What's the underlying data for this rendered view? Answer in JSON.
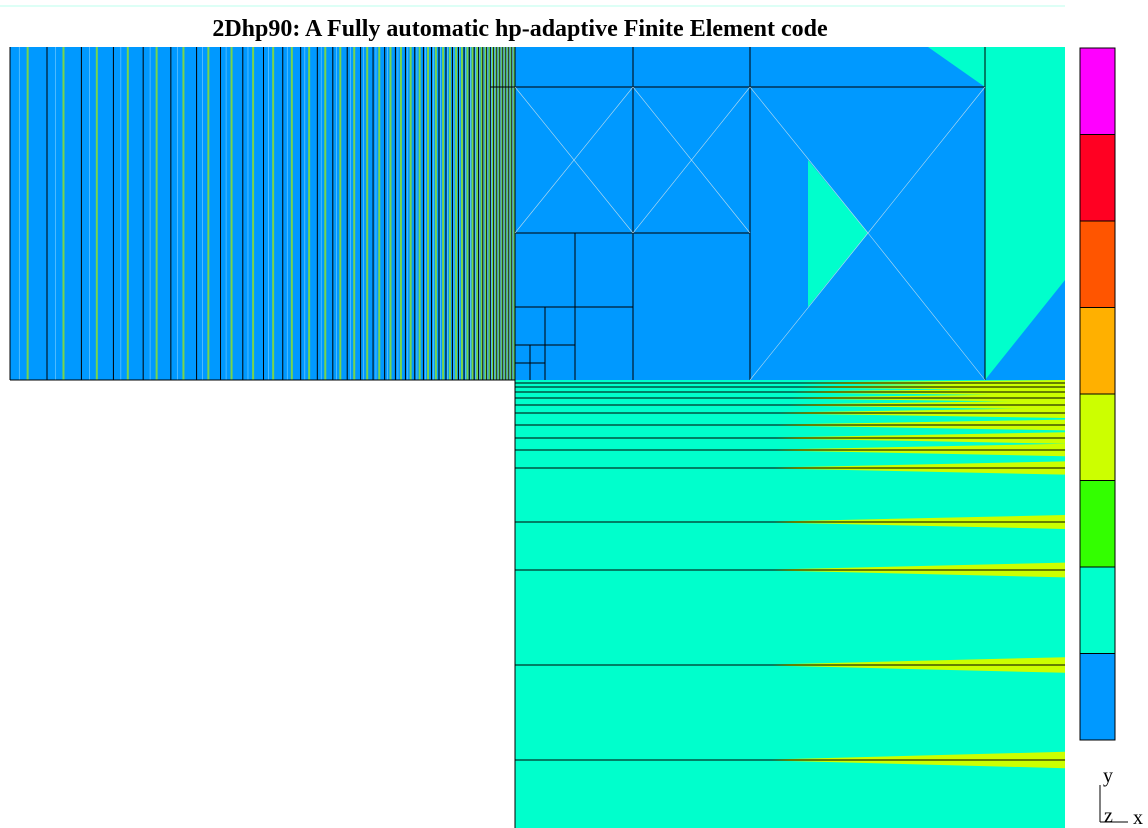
{
  "title": "2Dhp90: A Fully automatic hp-adaptive Finite Element code",
  "axes": {
    "y": "y",
    "z": "z",
    "x": "x"
  }
}
